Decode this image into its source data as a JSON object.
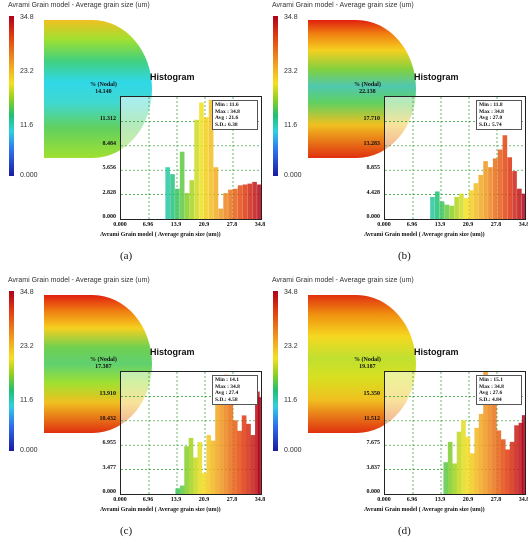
{
  "panels": [
    {
      "id": "a",
      "title": "Avrami Grain model - Average grain size (um)",
      "colorbar_labels": [
        "34.8",
        "23.2",
        "11.6",
        "0.000"
      ],
      "contour_gradient": "linear-gradient(to bottom,#f0c020 0%,#a0e030 14%,#40d080 30%,#30d8e8 45%,#40d8d0 60%,#60d060 78%,#a0e030 100%)",
      "histogram_title": "Histogram",
      "nodal_label": "% (Nodal)",
      "nodal_max": "14.140",
      "y_ticks": [
        "11.312",
        "8.484",
        "5.656",
        "2.828",
        "0.000"
      ],
      "x_ticks": [
        "0.000",
        "6.96",
        "13.9",
        "20.9",
        "27.8",
        "34.8"
      ],
      "xlabel": "Avrami Grain model ( Average grain size (um))",
      "stats": [
        "Min : 11.6",
        "Max : 34.8",
        "Avg : 21.6",
        "S.D.: 6.38"
      ],
      "label": "(a)"
    },
    {
      "id": "b",
      "title": "Avrami Grain model - Average grain size (um)",
      "colorbar_labels": [
        "34.8",
        "23.2",
        "11.6",
        "0.000"
      ],
      "contour_gradient": "linear-gradient(to bottom,#e02010 0%,#f08010 10%,#f5d020 22%,#80d040 36%,#50c8b0 48%,#60d060 60%,#f0c020 76%,#e03010 100%)",
      "histogram_title": "Histogram",
      "nodal_label": "% (Nodal)",
      "nodal_max": "22.138",
      "y_ticks": [
        "17.710",
        "13.283",
        "8.855",
        "4.428",
        "0.000"
      ],
      "x_ticks": [
        "0.000",
        "6.96",
        "13.9",
        "20.9",
        "27.8",
        "34.8"
      ],
      "xlabel": "Avrami Grain model ( Average grain size (um))",
      "stats": [
        "Min : 11.8",
        "Max : 34.8",
        "Avg : 27.0",
        "S.D.: 5.74"
      ],
      "label": "(b)"
    },
    {
      "id": "c",
      "title": "Avrami Grain model - Average grain size (um)",
      "colorbar_labels": [
        "34.8",
        "23.2",
        "11.6",
        "0.000"
      ],
      "contour_gradient": "linear-gradient(to bottom,#e02010 0%,#f08010 12%,#f5d020 24%,#70d050 38%,#60d070 50%,#a0e030 64%,#f0c020 78%,#e03010 100%)",
      "histogram_title": "Histogram",
      "nodal_label": "% (Nodal)",
      "nodal_max": "17.387",
      "y_ticks": [
        "13.910",
        "10.432",
        "6.955",
        "3.477",
        "0.000"
      ],
      "x_ticks": [
        "0.000",
        "6.96",
        "13.9",
        "20.9",
        "27.8",
        "34.8"
      ],
      "xlabel": "Avrami Grain model ( Average grain size (um))",
      "stats": [
        "Min : 14.1",
        "Max : 34.8",
        "Avg : 27.4",
        "S.D.: 4.58"
      ],
      "label": "(c)"
    },
    {
      "id": "d",
      "title": "Avrami Grain model - Average grain size (um)",
      "colorbar_labels": [
        "34.8",
        "23.2",
        "11.6",
        "0.000"
      ],
      "contour_gradient": "linear-gradient(to bottom,#e03010 0%,#f09010 14%,#f5d820 30%,#c0e030 46%,#d8e020 60%,#f0c020 76%,#e03010 100%)",
      "histogram_title": "Histogram",
      "nodal_label": "% (Nodal)",
      "nodal_max": "19.187",
      "y_ticks": [
        "15.350",
        "11.512",
        "7.675",
        "3.837",
        "0.000"
      ],
      "x_ticks": [
        "0.000",
        "6.96",
        "13.9",
        "20.9",
        "27.8",
        "34.8"
      ],
      "xlabel": "Avrami Grain model ( Average grain size (um))",
      "stats": [
        "Min : 15.1",
        "Max : 34.8",
        "Avg : 27.6",
        "S.D.: 4.84"
      ],
      "label": "(d)"
    }
  ],
  "chart_data": [
    {
      "type": "bar",
      "id": "a",
      "xlabel": "Avrami Grain model ( Average grain size (um))",
      "ylabel": "% (Nodal)",
      "xlim": [
        0,
        34.8
      ],
      "ylim": [
        0,
        14.14
      ],
      "x": [
        11.6,
        12.8,
        14.0,
        15.2,
        16.4,
        17.6,
        18.8,
        20.0,
        21.2,
        22.4,
        23.6,
        24.8,
        26.0,
        27.2,
        28.4,
        29.6,
        30.8,
        32.0,
        33.2,
        34.4
      ],
      "values": [
        6.0,
        5.2,
        3.5,
        7.8,
        3.0,
        4.5,
        11.5,
        13.5,
        11.8,
        13.8,
        6.0,
        1.2,
        3.0,
        3.4,
        3.5,
        3.9,
        4.0,
        4.1,
        4.3,
        4.0
      ]
    },
    {
      "type": "bar",
      "id": "b",
      "xlabel": "Avrami Grain model ( Average grain size (um))",
      "ylabel": "% (Nodal)",
      "xlim": [
        0,
        34.8
      ],
      "ylim": [
        0,
        22.138
      ],
      "x": [
        11.8,
        13.0,
        14.2,
        15.4,
        16.6,
        17.8,
        19.0,
        20.2,
        21.4,
        22.6,
        23.8,
        25.0,
        26.2,
        27.4,
        28.6,
        29.8,
        31.0,
        32.2,
        33.4,
        34.6
      ],
      "values": [
        4.0,
        5.0,
        3.2,
        2.6,
        2.4,
        4.0,
        4.6,
        3.8,
        5.2,
        6.5,
        8.0,
        10.5,
        9.4,
        11.0,
        12.6,
        15.2,
        11.2,
        8.7,
        5.5,
        4.6
      ]
    },
    {
      "type": "bar",
      "id": "c",
      "xlabel": "Avrami Grain model ( Average grain size (um))",
      "ylabel": "% (Nodal)",
      "xlim": [
        0,
        34.8
      ],
      "ylim": [
        0,
        17.387
      ],
      "x": [
        14.1,
        15.2,
        16.3,
        17.4,
        18.5,
        19.6,
        20.7,
        21.8,
        22.9,
        24.0,
        25.1,
        26.2,
        27.3,
        28.4,
        29.5,
        30.6,
        31.7,
        32.8,
        33.9,
        34.6
      ],
      "values": [
        0.8,
        1.2,
        6.8,
        8.0,
        5.2,
        7.4,
        3.0,
        8.4,
        7.6,
        13.6,
        14.8,
        17.0,
        15.3,
        10.5,
        9.0,
        11.2,
        10.0,
        8.4,
        14.6,
        13.8
      ]
    },
    {
      "type": "bar",
      "id": "d",
      "xlabel": "Avrami Grain model ( Average grain size (um))",
      "ylabel": "% (Nodal)",
      "xlim": [
        0,
        34.8
      ],
      "ylim": [
        0,
        19.187
      ],
      "x": [
        15.1,
        16.2,
        17.3,
        18.4,
        19.5,
        20.6,
        21.7,
        22.8,
        23.9,
        25.0,
        26.1,
        27.2,
        28.3,
        29.4,
        30.5,
        31.6,
        32.7,
        33.8,
        34.6
      ],
      "values": [
        5.0,
        8.2,
        4.8,
        9.8,
        11.6,
        9.0,
        6.4,
        10.4,
        12.6,
        19.2,
        17.0,
        14.4,
        10.0,
        8.6,
        7.0,
        8.2,
        10.8,
        11.2,
        12.4
      ]
    }
  ]
}
